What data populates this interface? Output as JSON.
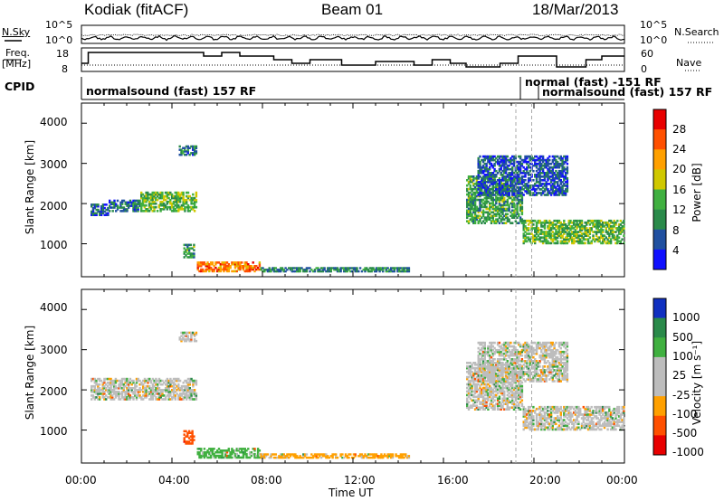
{
  "header": {
    "station": "Kodiak (fitACF)",
    "beam": "Beam 01",
    "date": "18/Mar/2013"
  },
  "noise_panel": {
    "left_label": "N.Sky",
    "right_label": "N.Search",
    "left_ticks": [
      "10^5",
      "10^0"
    ],
    "right_ticks": [
      "10^5",
      "10^0"
    ]
  },
  "freq_panel": {
    "left_label_top": "Freq.",
    "left_label_bottom": "[MHz]",
    "right_label": "Nave",
    "left_ticks": [
      "18",
      "8"
    ],
    "right_ticks": [
      "60",
      "0"
    ]
  },
  "cpid_panel": {
    "label": "CPID",
    "segments": [
      {
        "text": "normalsound (fast) 157 RF"
      },
      {
        "text": "normal (fast) -151 RF"
      },
      {
        "text": "normalsound (fast) 157 RF"
      }
    ]
  },
  "colors": {
    "power_scale": [
      "#1010ff",
      "#2050a0",
      "#2a8a4a",
      "#40b040",
      "#d0c800",
      "#ffa000",
      "#ff5000",
      "#e80000"
    ],
    "velocity_scale": [
      "#e80000",
      "#ff5000",
      "#ffa000",
      "#bdbdbd",
      "#bdbdbd",
      "#40b040",
      "#2a8a4a",
      "#1030c0"
    ]
  },
  "chart_data": [
    {
      "type": "heatmap",
      "name": "power",
      "ylabel": "Slant Range [km]",
      "yticks": [
        "4000",
        "3000",
        "2000",
        "1000"
      ],
      "ylim": [
        180,
        4500
      ],
      "xlim": [
        0,
        24
      ],
      "colorbar": {
        "label": "Power [dB]",
        "ticks": [
          "28",
          "24",
          "20",
          "16",
          "12",
          "8",
          "4"
        ],
        "range": [
          0,
          32
        ]
      },
      "regions": [
        {
          "t0": 0.4,
          "t1": 1.2,
          "r0": 1700,
          "r1": 2000,
          "level": 6
        },
        {
          "t0": 1.2,
          "t1": 2.6,
          "r0": 1800,
          "r1": 2100,
          "level": 8
        },
        {
          "t0": 2.6,
          "t1": 5.1,
          "r0": 1800,
          "r1": 2300,
          "level": 14
        },
        {
          "t0": 4.3,
          "t1": 5.1,
          "r0": 3200,
          "r1": 3450,
          "level": 8
        },
        {
          "t0": 4.5,
          "t1": 5.0,
          "r0": 650,
          "r1": 1000,
          "level": 12
        },
        {
          "t0": 5.1,
          "t1": 7.9,
          "r0": 300,
          "r1": 560,
          "level": 24
        },
        {
          "t0": 7.9,
          "t1": 14.5,
          "r0": 300,
          "r1": 420,
          "level": 9
        },
        {
          "t0": 17.0,
          "t1": 19.5,
          "r0": 1500,
          "r1": 2700,
          "level": 12
        },
        {
          "t0": 19.5,
          "t1": 24.0,
          "r0": 1000,
          "r1": 1600,
          "level": 14
        },
        {
          "t0": 17.5,
          "t1": 21.5,
          "r0": 2200,
          "r1": 3200,
          "level": 6
        }
      ]
    },
    {
      "type": "heatmap",
      "name": "velocity",
      "ylabel": "Slant Range [km]",
      "yticks": [
        "4000",
        "3000",
        "2000",
        "1000"
      ],
      "ylim": [
        180,
        4500
      ],
      "xlim": [
        0,
        24
      ],
      "xlabel": "Time UT",
      "xticks": [
        "00:00",
        "04:00",
        "08:00",
        "12:00",
        "16:00",
        "20:00",
        "00:00"
      ],
      "colorbar": {
        "label": "Velocity [m s⁻¹]",
        "ticks": [
          "1000",
          "500",
          "100",
          "25",
          "-25",
          "-100",
          "-500",
          "-1000"
        ],
        "range": [
          -1200,
          1200
        ]
      },
      "regions": [
        {
          "t0": 0.4,
          "t1": 5.1,
          "r0": 1750,
          "r1": 2300,
          "value": 0
        },
        {
          "t0": 4.3,
          "t1": 5.1,
          "r0": 3200,
          "r1": 3450,
          "value": 0
        },
        {
          "t0": 4.5,
          "t1": 5.0,
          "r0": 650,
          "r1": 1000,
          "value": -300
        },
        {
          "t0": 5.1,
          "t1": 7.9,
          "r0": 300,
          "r1": 560,
          "value": 50
        },
        {
          "t0": 7.9,
          "t1": 14.5,
          "r0": 300,
          "r1": 420,
          "value": -50
        },
        {
          "t0": 17.0,
          "t1": 19.5,
          "r0": 1500,
          "r1": 2700,
          "value": 0
        },
        {
          "t0": 19.5,
          "t1": 24.0,
          "r0": 1000,
          "r1": 1600,
          "value": 0
        },
        {
          "t0": 17.5,
          "t1": 21.5,
          "r0": 2200,
          "r1": 3200,
          "value": 0
        }
      ]
    }
  ]
}
